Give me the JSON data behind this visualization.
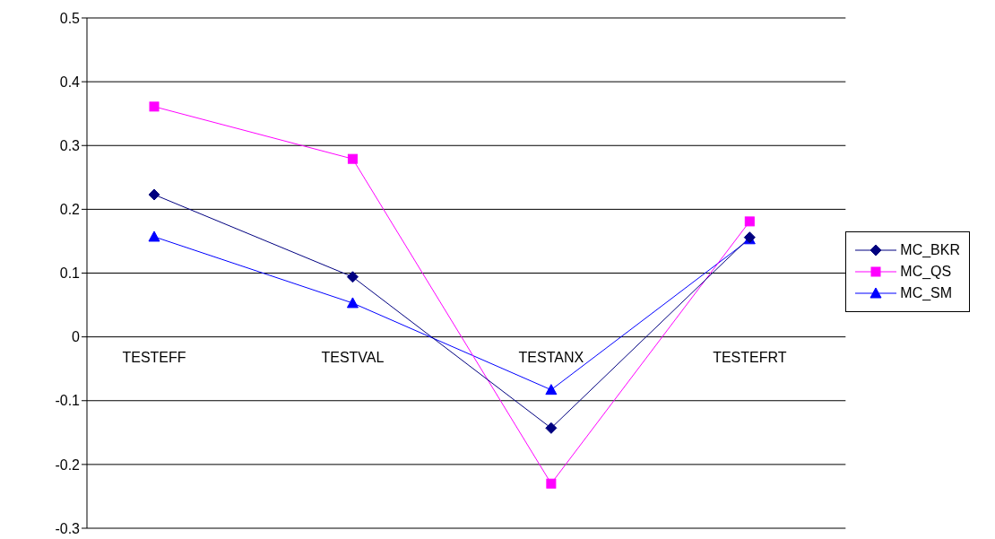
{
  "chart_data": {
    "type": "line",
    "categories": [
      "TESTEFF",
      "TESTVAL",
      "TESTANX",
      "TESTEFRT"
    ],
    "series": [
      {
        "name": "MC_BKR",
        "color": "#000080",
        "marker": "diamond",
        "values": [
          0.223,
          0.094,
          -0.143,
          0.156
        ]
      },
      {
        "name": "MC_QS",
        "color": "#ff00ff",
        "marker": "square",
        "values": [
          0.361,
          0.279,
          -0.23,
          0.181
        ]
      },
      {
        "name": "MC_SM",
        "color": "#0000ff",
        "marker": "triangle",
        "values": [
          0.157,
          0.053,
          -0.083,
          0.153
        ]
      }
    ],
    "ylim": [
      -0.3,
      0.5
    ],
    "yticks": [
      -0.3,
      -0.2,
      -0.1,
      0,
      0.1,
      0.2,
      0.3,
      0.4,
      0.5
    ],
    "grid": "y",
    "legend": "right"
  }
}
